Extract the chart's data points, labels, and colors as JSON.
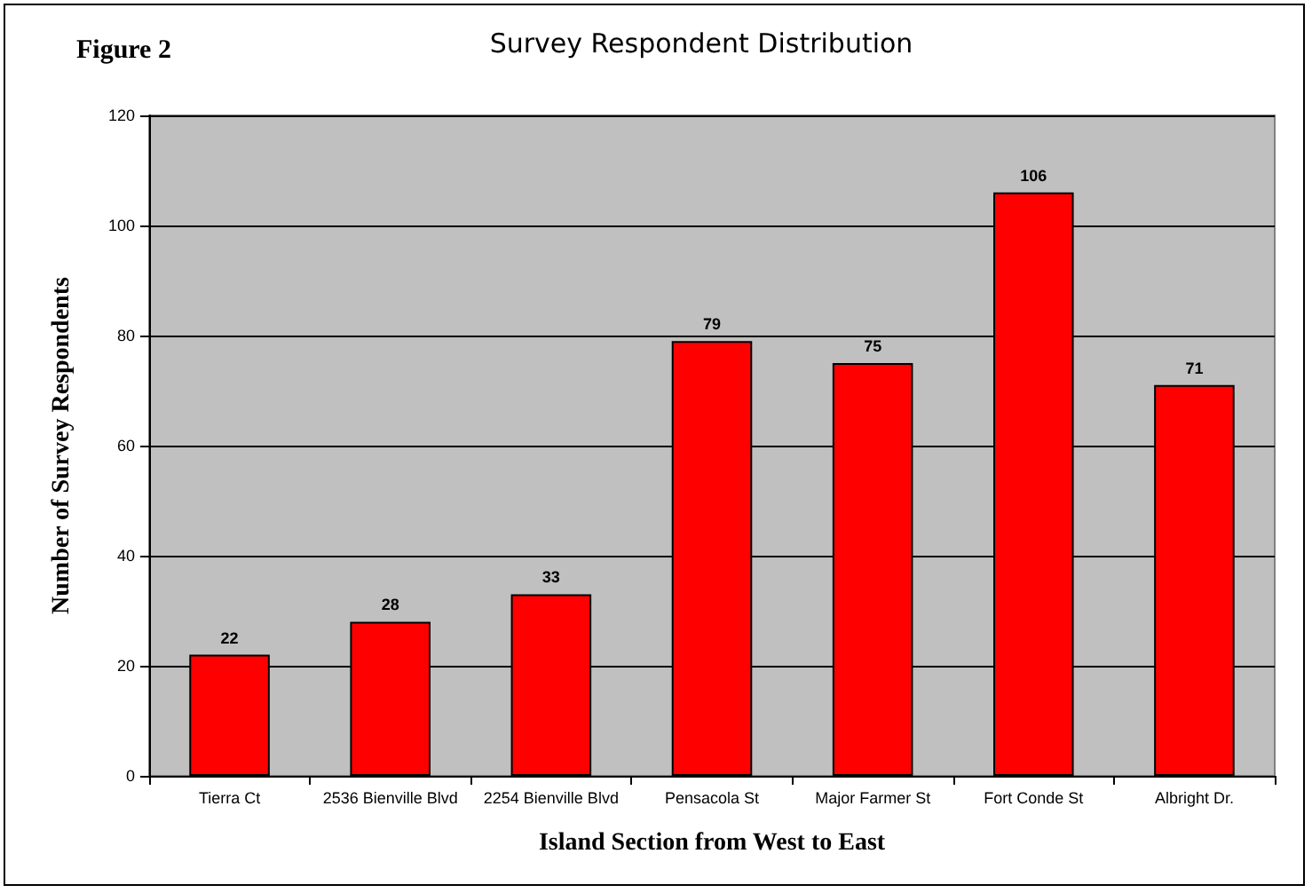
{
  "chart_data": {
    "type": "bar",
    "title": "Survey Respondent Distribution",
    "annotations": [
      "Figure 2"
    ],
    "xlabel": "Island Section from West to East",
    "ylabel": "Number of Survey Respondents",
    "categories": [
      "Tierra Ct",
      "2536 Bienville Blvd",
      "2254 Bienville Blvd",
      "Pensacola St",
      "Major Farmer St",
      "Fort Conde St",
      "Albright Dr."
    ],
    "values": [
      22,
      28,
      33,
      79,
      75,
      106,
      71
    ],
    "color": "#ff0000",
    "ylim": [
      0,
      120
    ],
    "yticks": [
      0,
      20,
      40,
      60,
      80,
      100,
      120
    ],
    "grid": "y",
    "data_labels": true
  }
}
